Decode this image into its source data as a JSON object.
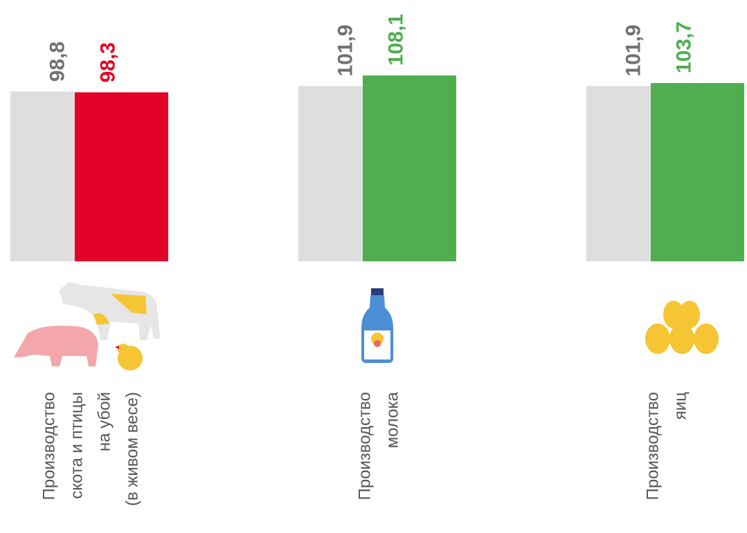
{
  "chart_data": {
    "type": "bar",
    "categories": [
      [
        "Производство",
        "скота и птицы",
        "на убой",
        "(в живом весе)"
      ],
      [
        "Производство",
        "молока"
      ],
      [
        "Производство",
        "яиц"
      ]
    ],
    "series": [
      {
        "color": "#dedede",
        "label_color": "#707070",
        "values": [
          98.8,
          101.9,
          101.9
        ],
        "value_labels": [
          "98,8",
          "101,9",
          "101,9"
        ]
      },
      {
        "colors": [
          "#e30026",
          "#4fae4e",
          "#4fae4e"
        ],
        "values": [
          98.3,
          108.1,
          103.7
        ],
        "value_labels": [
          "98,3",
          "108,1",
          "103,7"
        ]
      }
    ],
    "ylim": [
      0,
      152
    ]
  }
}
